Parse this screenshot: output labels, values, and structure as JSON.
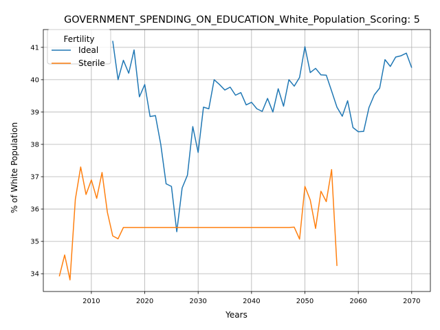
{
  "chart_data": {
    "type": "line",
    "title": "GOVERNMENT_SPENDING_ON_EDUCATION_White_Population_Scoring: 5",
    "xlabel": "Years",
    "ylabel": "% of White Population",
    "xlim": [
      2001,
      2073.5
    ],
    "ylim": [
      33.45,
      41.55
    ],
    "x_ticks": [
      2010,
      2020,
      2030,
      2040,
      2050,
      2060,
      2070
    ],
    "y_ticks": [
      34,
      35,
      36,
      37,
      38,
      39,
      40,
      41
    ],
    "grid": true,
    "legend": {
      "title": "Fertility",
      "placement": "upper-left"
    },
    "series": [
      {
        "name": "Ideal",
        "color": "#1f77b4",
        "x": [
          2014,
          2015,
          2016,
          2017,
          2018,
          2019,
          2020,
          2021,
          2022,
          2023,
          2024,
          2025,
          2026,
          2027,
          2028,
          2029,
          2030,
          2031,
          2032,
          2033,
          2034,
          2035,
          2036,
          2037,
          2038,
          2039,
          2040,
          2041,
          2042,
          2043,
          2044,
          2045,
          2046,
          2047,
          2048,
          2049,
          2050,
          2051,
          2052,
          2053,
          2054,
          2055,
          2056,
          2057,
          2058,
          2059,
          2060,
          2061,
          2062,
          2063,
          2064,
          2065,
          2066,
          2067,
          2068,
          2069,
          2070
        ],
        "y": [
          41.2,
          40.0,
          40.6,
          40.2,
          40.92,
          39.47,
          39.85,
          38.86,
          38.89,
          38.0,
          36.78,
          36.7,
          35.3,
          36.65,
          37.05,
          38.55,
          37.75,
          39.15,
          39.1,
          40.0,
          39.85,
          39.68,
          39.77,
          39.52,
          39.6,
          39.22,
          39.3,
          39.1,
          39.02,
          39.42,
          39.0,
          39.72,
          39.18,
          40.0,
          39.8,
          40.07,
          41.02,
          40.22,
          40.35,
          40.15,
          40.14,
          39.65,
          39.15,
          38.87,
          39.35,
          38.52,
          38.39,
          38.4,
          39.14,
          39.53,
          39.74,
          40.62,
          40.41,
          40.7,
          40.74,
          40.82,
          40.37
        ]
      },
      {
        "name": "Sterile",
        "color": "#ff7f0e",
        "x": [
          2004,
          2005,
          2006,
          2007,
          2008,
          2009,
          2010,
          2011,
          2012,
          2013,
          2014,
          2015,
          2016,
          2017,
          2018,
          2019,
          2020,
          2021,
          2022,
          2023,
          2024,
          2025,
          2026,
          2027,
          2028,
          2029,
          2030,
          2031,
          2032,
          2033,
          2034,
          2035,
          2036,
          2037,
          2038,
          2039,
          2040,
          2041,
          2042,
          2043,
          2044,
          2045,
          2046,
          2047,
          2048,
          2049,
          2050,
          2051,
          2052,
          2053,
          2054,
          2055,
          2056
        ],
        "y": [
          33.92,
          34.58,
          33.81,
          36.3,
          37.3,
          36.45,
          36.9,
          36.33,
          37.13,
          35.9,
          35.17,
          35.08,
          35.43,
          35.43,
          35.43,
          35.43,
          35.43,
          35.43,
          35.43,
          35.43,
          35.43,
          35.43,
          35.43,
          35.43,
          35.43,
          35.43,
          35.43,
          35.43,
          35.43,
          35.43,
          35.43,
          35.43,
          35.43,
          35.43,
          35.43,
          35.43,
          35.43,
          35.43,
          35.43,
          35.43,
          35.43,
          35.43,
          35.43,
          35.43,
          35.44,
          35.07,
          36.7,
          36.28,
          35.4,
          36.55,
          36.23,
          37.22,
          34.24
        ]
      }
    ]
  }
}
